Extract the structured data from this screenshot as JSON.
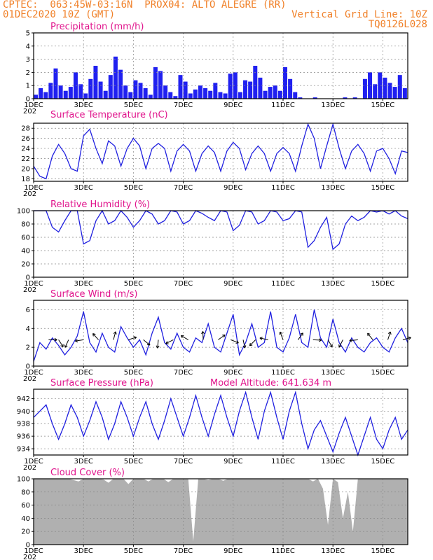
{
  "header": {
    "line1_left": "CPTEC:  063:45W-03:16N  PROX04: ALTO ALEGRE (RR)",
    "line2_left": "01DEC2020 10Z (GMT)",
    "line2_right": "Vertical Grid Line: 10Z",
    "line3_right": "TQ0126L028"
  },
  "colors": {
    "line": "#2020e0",
    "bar": "#2020f0",
    "title": "#e0148c",
    "header": "#f08028",
    "cloud": "#b0b0b0"
  },
  "x_axis": {
    "tick_labels": [
      "1DEC",
      "3DEC",
      "5DEC",
      "7DEC",
      "9DEC",
      "11DEC",
      "13DEC",
      "15DEC"
    ],
    "tick_days": [
      0,
      2,
      4,
      6,
      8,
      10,
      12,
      14
    ],
    "range_days": [
      0,
      15.0
    ],
    "year_fragment": "202"
  },
  "chart_data": [
    {
      "type": "bar",
      "title": "Precipitation (mm/h)",
      "ylim": [
        0,
        5
      ],
      "yticks": [
        0,
        1,
        2,
        3,
        4,
        5
      ],
      "x_days": [
        0.0,
        0.2,
        0.4,
        0.6,
        0.8,
        1.0,
        1.2,
        1.4,
        1.6,
        1.8,
        2.0,
        2.2,
        2.4,
        2.6,
        2.8,
        3.0,
        3.2,
        3.4,
        3.6,
        3.8,
        4.0,
        4.2,
        4.4,
        4.6,
        4.8,
        5.0,
        5.2,
        5.4,
        5.6,
        5.8,
        6.0,
        6.2,
        6.4,
        6.6,
        6.8,
        7.0,
        7.2,
        7.4,
        7.6,
        7.8,
        8.0,
        8.2,
        8.4,
        8.6,
        8.8,
        9.0,
        9.2,
        9.4,
        9.6,
        9.8,
        10.0,
        10.2,
        10.4,
        10.6,
        10.8,
        11.0,
        11.2,
        11.4,
        11.6,
        11.8,
        12.0,
        12.2,
        12.4,
        12.6,
        12.8,
        13.0,
        13.2,
        13.4,
        13.6,
        13.8,
        14.0,
        14.2,
        14.4,
        14.6,
        14.8
      ],
      "values": [
        0.3,
        0.8,
        0.5,
        1.2,
        2.3,
        1.0,
        0.6,
        0.9,
        2.0,
        1.1,
        0.4,
        1.5,
        2.5,
        1.3,
        0.6,
        1.8,
        3.2,
        2.2,
        1.0,
        0.5,
        1.4,
        1.2,
        0.8,
        0.3,
        2.4,
        2.1,
        1.0,
        0.5,
        0.2,
        1.8,
        1.3,
        0.4,
        0.7,
        1.0,
        0.8,
        0.6,
        1.2,
        0.5,
        0.4,
        1.9,
        2.0,
        0.5,
        1.4,
        1.3,
        2.5,
        1.6,
        0.6,
        0.9,
        1.0,
        0.6,
        2.4,
        1.5,
        0.5,
        0.1,
        0.0,
        0.0,
        0.1,
        0.0,
        0.0,
        0.0,
        0.0,
        0.0,
        0.1,
        0.0,
        0.1,
        0.0,
        1.5,
        2.0,
        1.1,
        2.0,
        1.6,
        1.2,
        0.9,
        1.8,
        0.8
      ]
    },
    {
      "type": "line",
      "title": "Surface Temperature (nC)",
      "ylim": [
        17.5,
        29
      ],
      "yticks": [
        18,
        20,
        22,
        24,
        26,
        28
      ],
      "x_days": [
        0.0,
        0.25,
        0.5,
        0.75,
        1.0,
        1.25,
        1.5,
        1.75,
        2.0,
        2.25,
        2.5,
        2.75,
        3.0,
        3.25,
        3.5,
        3.75,
        4.0,
        4.25,
        4.5,
        4.75,
        5.0,
        5.25,
        5.5,
        5.75,
        6.0,
        6.25,
        6.5,
        6.75,
        7.0,
        7.25,
        7.5,
        7.75,
        8.0,
        8.25,
        8.5,
        8.75,
        9.0,
        9.25,
        9.5,
        9.75,
        10.0,
        10.25,
        10.5,
        10.75,
        11.0,
        11.25,
        11.5,
        11.75,
        12.0,
        12.25,
        12.5,
        12.75,
        13.0,
        13.25,
        13.5,
        13.75,
        14.0,
        14.25,
        14.5,
        14.75,
        15.0
      ],
      "values": [
        20.5,
        18.5,
        18.0,
        22.5,
        24.8,
        23.0,
        20.0,
        19.5,
        26.5,
        27.8,
        24.0,
        21.0,
        25.5,
        24.5,
        20.5,
        24.0,
        26.0,
        24.5,
        20.0,
        24.0,
        25.0,
        24.0,
        19.5,
        23.5,
        24.8,
        23.5,
        19.5,
        23.0,
        24.5,
        23.2,
        19.5,
        23.5,
        25.2,
        24.0,
        19.8,
        23.0,
        24.5,
        23.0,
        19.5,
        23.0,
        24.2,
        23.0,
        19.5,
        24.5,
        28.8,
        26.0,
        20.0,
        24.5,
        28.8,
        24.0,
        20.0,
        23.5,
        24.8,
        23.0,
        19.5,
        23.5,
        24.0,
        22.0,
        19.0,
        23.5,
        23.2
      ]
    },
    {
      "type": "line",
      "title": "Relative Humidity (%)",
      "ylim": [
        0,
        100
      ],
      "yticks": [
        0,
        20,
        40,
        60,
        80,
        100
      ],
      "x_days": [
        0.0,
        0.25,
        0.5,
        0.75,
        1.0,
        1.25,
        1.5,
        1.75,
        2.0,
        2.25,
        2.5,
        2.75,
        3.0,
        3.25,
        3.5,
        3.75,
        4.0,
        4.25,
        4.5,
        4.75,
        5.0,
        5.25,
        5.5,
        5.75,
        6.0,
        6.25,
        6.5,
        6.75,
        7.0,
        7.25,
        7.5,
        7.75,
        8.0,
        8.25,
        8.5,
        8.75,
        9.0,
        9.25,
        9.5,
        9.75,
        10.0,
        10.25,
        10.5,
        10.75,
        11.0,
        11.25,
        11.5,
        11.75,
        12.0,
        12.25,
        12.5,
        12.75,
        13.0,
        13.25,
        13.5,
        13.75,
        14.0,
        14.25,
        14.5,
        14.75,
        15.0
      ],
      "values": [
        100,
        100,
        100,
        75,
        68,
        85,
        100,
        100,
        50,
        55,
        85,
        100,
        80,
        85,
        100,
        90,
        75,
        85,
        100,
        95,
        80,
        85,
        100,
        98,
        80,
        85,
        100,
        96,
        90,
        85,
        100,
        98,
        70,
        78,
        100,
        98,
        80,
        85,
        100,
        98,
        85,
        88,
        100,
        98,
        45,
        55,
        75,
        90,
        42,
        50,
        80,
        92,
        85,
        90,
        100,
        98,
        100,
        95,
        100,
        92,
        88
      ]
    },
    {
      "type": "line",
      "title": "Surface Wind (m/s)",
      "ylim": [
        0,
        7
      ],
      "yticks": [
        0,
        2,
        4,
        6
      ],
      "x_days": [
        0.0,
        0.25,
        0.5,
        0.75,
        1.0,
        1.25,
        1.5,
        1.75,
        2.0,
        2.25,
        2.5,
        2.75,
        3.0,
        3.25,
        3.5,
        3.75,
        4.0,
        4.25,
        4.5,
        4.75,
        5.0,
        5.25,
        5.5,
        5.75,
        6.0,
        6.25,
        6.5,
        6.75,
        7.0,
        7.25,
        7.5,
        7.75,
        8.0,
        8.25,
        8.5,
        8.75,
        9.0,
        9.25,
        9.5,
        9.75,
        10.0,
        10.25,
        10.5,
        10.75,
        11.0,
        11.25,
        11.5,
        11.75,
        12.0,
        12.25,
        12.5,
        12.75,
        13.0,
        13.25,
        13.5,
        13.75,
        14.0,
        14.25,
        14.5,
        14.75,
        15.0
      ],
      "values": [
        0.5,
        2.5,
        1.8,
        3.0,
        2.2,
        1.2,
        2.0,
        3.2,
        5.8,
        2.5,
        1.5,
        3.5,
        2.0,
        1.5,
        4.2,
        3.0,
        2.0,
        2.8,
        1.2,
        3.5,
        5.2,
        2.5,
        1.8,
        3.5,
        2.0,
        1.5,
        3.0,
        2.5,
        4.5,
        2.0,
        1.5,
        3.5,
        5.5,
        1.2,
        2.5,
        4.5,
        2.0,
        2.5,
        5.8,
        2.0,
        1.5,
        3.0,
        5.5,
        2.5,
        2.0,
        6.0,
        3.0,
        2.0,
        5.0,
        2.5,
        1.5,
        3.0,
        2.0,
        1.5,
        2.5,
        3.0,
        2.0,
        1.5,
        3.0,
        4.0,
        2.5
      ],
      "barb_days": [
        0.6,
        1.0,
        1.4,
        2.0,
        2.6,
        3.2,
        3.8,
        4.4,
        5.0,
        5.6,
        6.2,
        6.8,
        7.4,
        7.9,
        8.4,
        8.9,
        9.4,
        10.0,
        10.6,
        11.2,
        11.8,
        12.4,
        13.0,
        13.6,
        14.2,
        14.8
      ]
    },
    {
      "type": "line",
      "title": "Surface Pressure (hPa)",
      "subtitle": "Model Altitude: 641.634  m",
      "ylim": [
        933,
        943.5
      ],
      "yticks": [
        934,
        936,
        938,
        940,
        942
      ],
      "x_days": [
        0.0,
        0.25,
        0.5,
        0.75,
        1.0,
        1.25,
        1.5,
        1.75,
        2.0,
        2.25,
        2.5,
        2.75,
        3.0,
        3.25,
        3.5,
        3.75,
        4.0,
        4.25,
        4.5,
        4.75,
        5.0,
        5.25,
        5.5,
        5.75,
        6.0,
        6.25,
        6.5,
        6.75,
        7.0,
        7.25,
        7.5,
        7.75,
        8.0,
        8.25,
        8.5,
        8.75,
        9.0,
        9.25,
        9.5,
        9.75,
        10.0,
        10.25,
        10.5,
        10.75,
        11.0,
        11.25,
        11.5,
        11.75,
        12.0,
        12.25,
        12.5,
        12.75,
        13.0,
        13.25,
        13.5,
        13.75,
        14.0,
        14.25,
        14.5,
        14.75,
        15.0
      ],
      "values": [
        939,
        940,
        941,
        938,
        935.5,
        938,
        941,
        939,
        936,
        938.5,
        941.5,
        939,
        935.5,
        938,
        941.5,
        939,
        936,
        939,
        941.5,
        938,
        935.5,
        938.5,
        942,
        939,
        936,
        939,
        942.5,
        939,
        936,
        939.5,
        942.5,
        939,
        936,
        940,
        943,
        939,
        935.5,
        940,
        943,
        939,
        935.5,
        940,
        943,
        938,
        934,
        937,
        938.5,
        936,
        933.5,
        936.5,
        939,
        936,
        933,
        936,
        939,
        935.5,
        934,
        937,
        939,
        935.5,
        937
      ]
    },
    {
      "type": "area",
      "title": "Cloud Cover (%)",
      "ylim": [
        0,
        100
      ],
      "yticks": [
        0,
        20,
        40,
        60,
        80,
        100
      ],
      "x_days": [
        0.0,
        0.2,
        0.4,
        0.6,
        0.8,
        1.0,
        1.2,
        1.4,
        1.6,
        1.8,
        2.0,
        2.2,
        2.4,
        2.6,
        2.8,
        3.0,
        3.2,
        3.4,
        3.6,
        3.8,
        4.0,
        4.2,
        4.4,
        4.6,
        4.8,
        5.0,
        5.2,
        5.4,
        5.6,
        5.8,
        6.0,
        6.2,
        6.4,
        6.6,
        6.8,
        7.0,
        7.2,
        7.4,
        7.6,
        7.8,
        8.0,
        8.2,
        8.4,
        8.6,
        8.8,
        9.0,
        9.2,
        9.4,
        9.6,
        9.8,
        10.0,
        10.2,
        10.4,
        10.6,
        10.8,
        11.0,
        11.2,
        11.4,
        11.6,
        11.8,
        12.0,
        12.2,
        12.4,
        12.6,
        12.8,
        13.0,
        13.2,
        13.4,
        13.6,
        13.8,
        14.0,
        14.2,
        14.4,
        14.6,
        14.8,
        15.0
      ],
      "values": [
        100,
        100,
        100,
        100,
        100,
        100,
        100,
        100,
        98,
        96,
        100,
        100,
        100,
        100,
        99,
        94,
        100,
        100,
        100,
        92,
        100,
        100,
        100,
        96,
        100,
        100,
        100,
        95,
        100,
        100,
        100,
        100,
        5,
        100,
        100,
        98,
        100,
        100,
        97,
        100,
        100,
        100,
        100,
        100,
        100,
        100,
        100,
        100,
        100,
        100,
        100,
        100,
        100,
        100,
        100,
        100,
        96,
        100,
        85,
        30,
        100,
        95,
        40,
        80,
        20,
        100,
        100,
        100,
        100,
        100,
        100,
        100,
        100,
        100,
        100,
        100
      ]
    }
  ]
}
